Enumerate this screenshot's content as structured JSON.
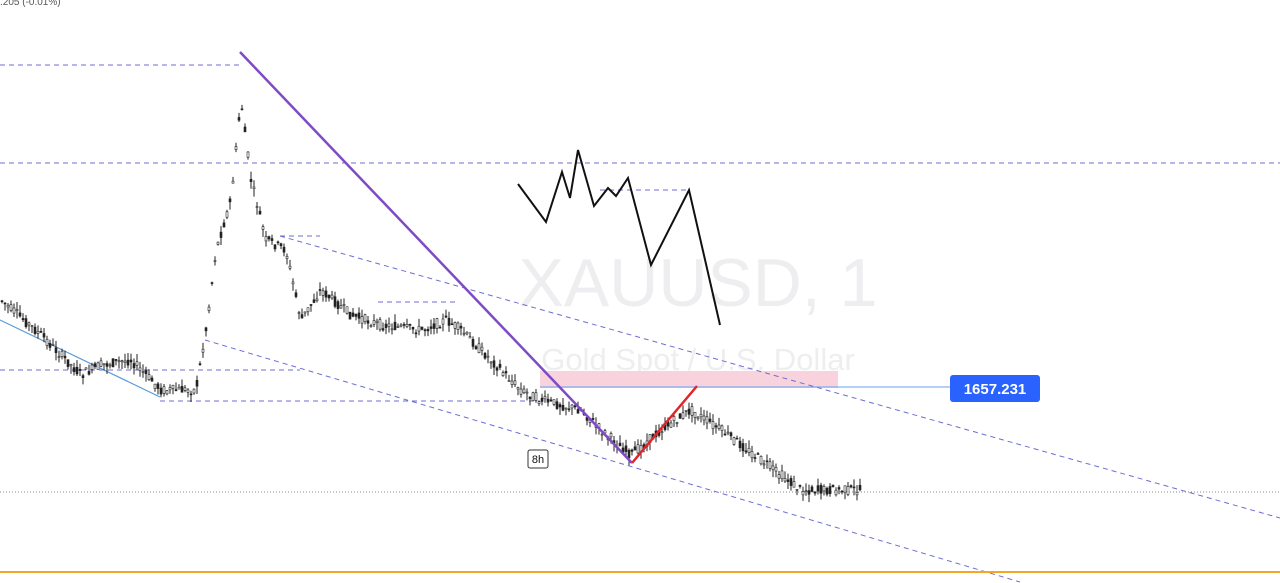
{
  "header": {
    "quote": ".205 (-0.01%)"
  },
  "watermark": {
    "symbol": "XAUUSD, 1",
    "description": "Gold Spot / U.S. Dollar"
  },
  "price_label": "1657.231",
  "marker_label": "8h"
}
